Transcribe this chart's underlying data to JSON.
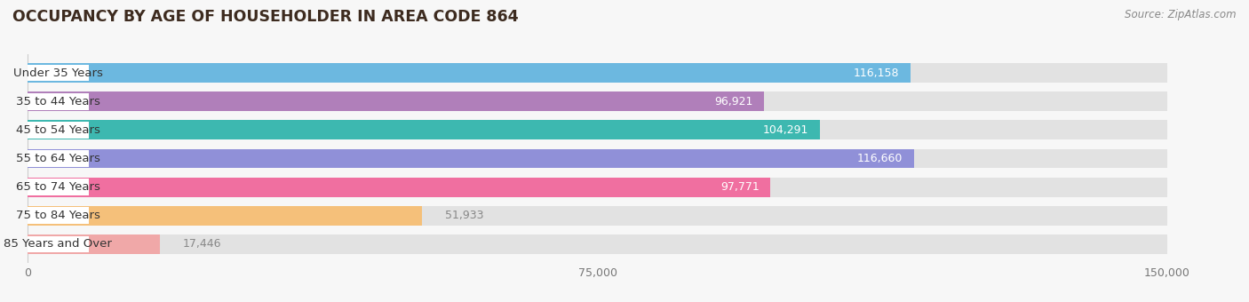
{
  "title": "OCCUPANCY BY AGE OF HOUSEHOLDER IN AREA CODE 864",
  "source": "Source: ZipAtlas.com",
  "categories": [
    "Under 35 Years",
    "35 to 44 Years",
    "45 to 54 Years",
    "55 to 64 Years",
    "65 to 74 Years",
    "75 to 84 Years",
    "85 Years and Over"
  ],
  "values": [
    116158,
    96921,
    104291,
    116660,
    97771,
    51933,
    17446
  ],
  "bar_colors": [
    "#6cb8e0",
    "#b07fba",
    "#3db8b0",
    "#9090d8",
    "#f06fa0",
    "#f5c07a",
    "#f0a8a8"
  ],
  "xlim": [
    0,
    150000
  ],
  "xticks": [
    0,
    75000,
    150000
  ],
  "xtick_labels": [
    "0",
    "75,000",
    "150,000"
  ],
  "value_label_colors": [
    "white",
    "white",
    "white",
    "white",
    "white",
    "#aaaaaa",
    "#aaaaaa"
  ],
  "background_color": "#f7f7f7",
  "bar_bg_color": "#e2e2e2",
  "title_color": "#3d2b1f",
  "title_fontsize": 12.5,
  "source_fontsize": 8.5,
  "label_fontsize": 9.5,
  "value_fontsize": 9
}
